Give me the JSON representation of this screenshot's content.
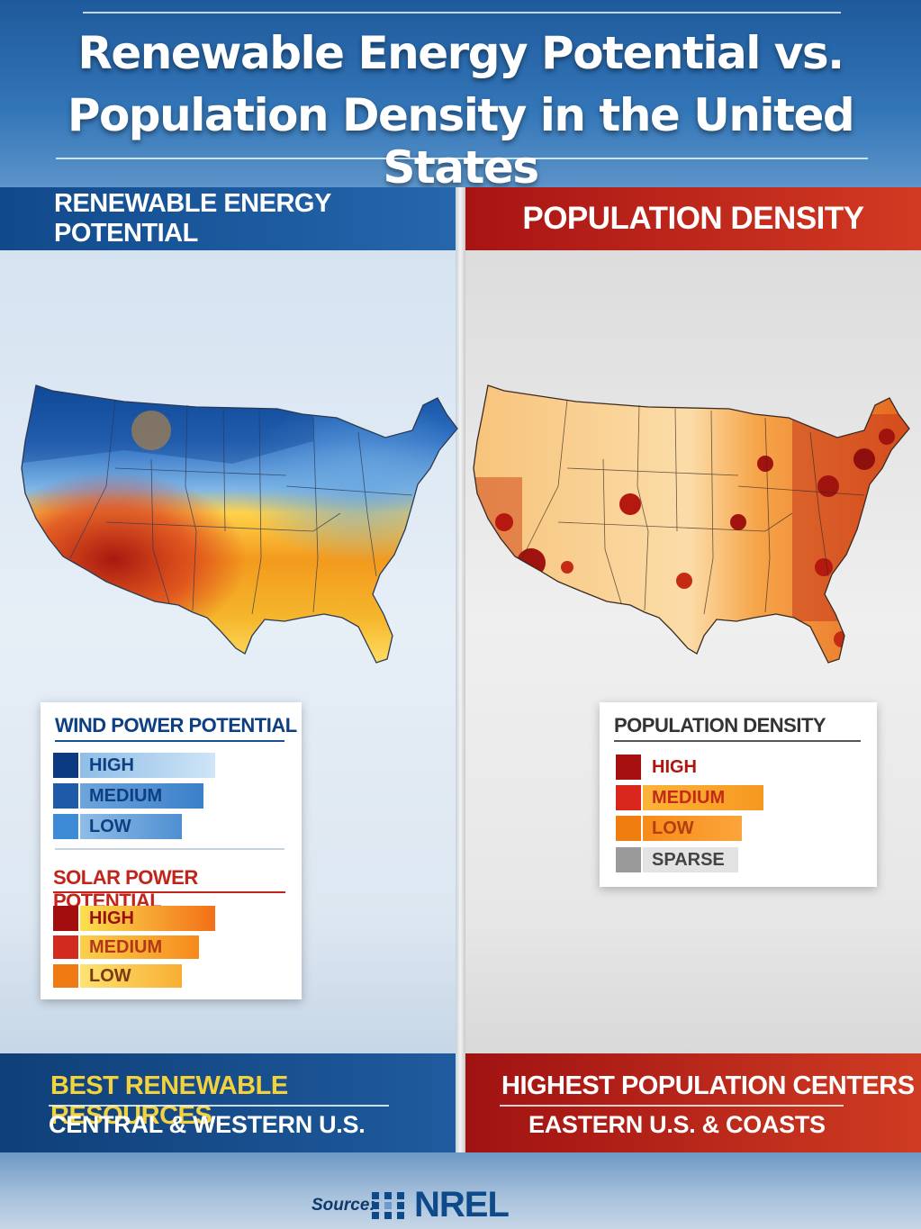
{
  "title": {
    "line1": "Renewable Energy Potential vs.",
    "line2": "Population Density in the United States"
  },
  "left_panel": {
    "header": "RENEWABLE ENERGY POTENTIAL",
    "legend": {
      "wind_title": "WIND POWER POTENTIAL",
      "wind_items": [
        {
          "label": "HIGH",
          "color": "#0b3a82"
        },
        {
          "label": "MEDIUM",
          "color": "#1f5aa8"
        },
        {
          "label": "LOW",
          "color": "#3d8ad6"
        }
      ],
      "solar_title": "SOLAR POWER POTENTIAL",
      "solar_items": [
        {
          "label": "HIGH",
          "color": "#a30d0d"
        },
        {
          "label": "MEDIUM",
          "color": "#d22a1f"
        },
        {
          "label": "LOW",
          "color": "#f07a12"
        }
      ]
    },
    "summary_heading": "BEST RENEWABLE RESOURCES",
    "summary_region": "CENTRAL & WESTERN U.S."
  },
  "right_panel": {
    "header": "POPULATION DENSITY",
    "legend": {
      "title": "POPULATION DENSITY",
      "items": [
        {
          "label": "HIGH",
          "color": "#a50f0f"
        },
        {
          "label": "MEDIUM",
          "color": "#d9261c"
        },
        {
          "label": "LOW",
          "color": "#f07d10"
        },
        {
          "label": "SPARSE",
          "color": "#9a9a9a"
        }
      ]
    },
    "summary_heading": "HIGHEST POPULATION CENTERS",
    "summary_region": "EASTERN U.S. & COASTS"
  },
  "footer": {
    "source_label": "Source:",
    "org": "NREL"
  },
  "colors": {
    "wind_accent": "#0d4a92",
    "solar_accent": "#c62a16",
    "summary_yellow": "#f4d23c"
  }
}
